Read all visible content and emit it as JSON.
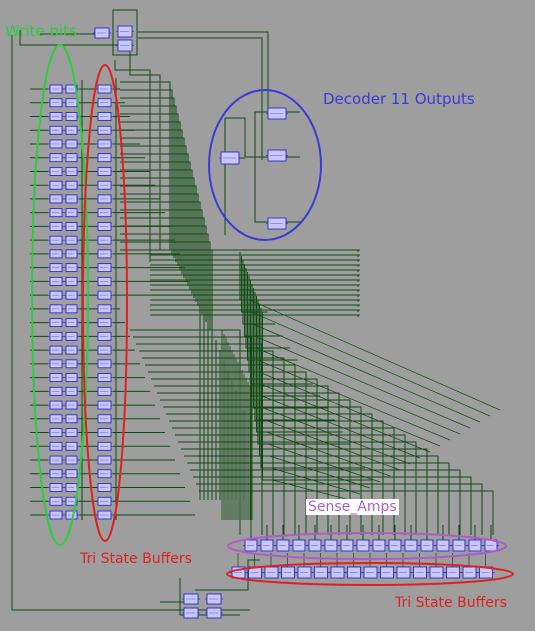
{
  "labels": {
    "write_bits": "Write bits",
    "decoder": "Decoder 11 Outputs",
    "sense_amps": "Sense_Amps",
    "tri_state_left": "Tri State Buffers",
    "tri_state_bottom": "Tri State Buffers"
  },
  "colors": {
    "background": "#9e9e9e",
    "wire": "#0f4a10",
    "cell_fill": "#c8c8ff",
    "cell_stroke": "#1a1acc",
    "write_ellipse": "#2ecc40",
    "tri_ellipse": "#e02020",
    "decoder_ellipse": "#3a3ad8",
    "sense_ellipse": "#b05cc8"
  },
  "components": {
    "write_bit_cells": 32,
    "tri_state_left_cells": 32,
    "decoder_cells": 4,
    "sense_amp_cells": 16,
    "tri_state_bottom_cells": 16
  }
}
